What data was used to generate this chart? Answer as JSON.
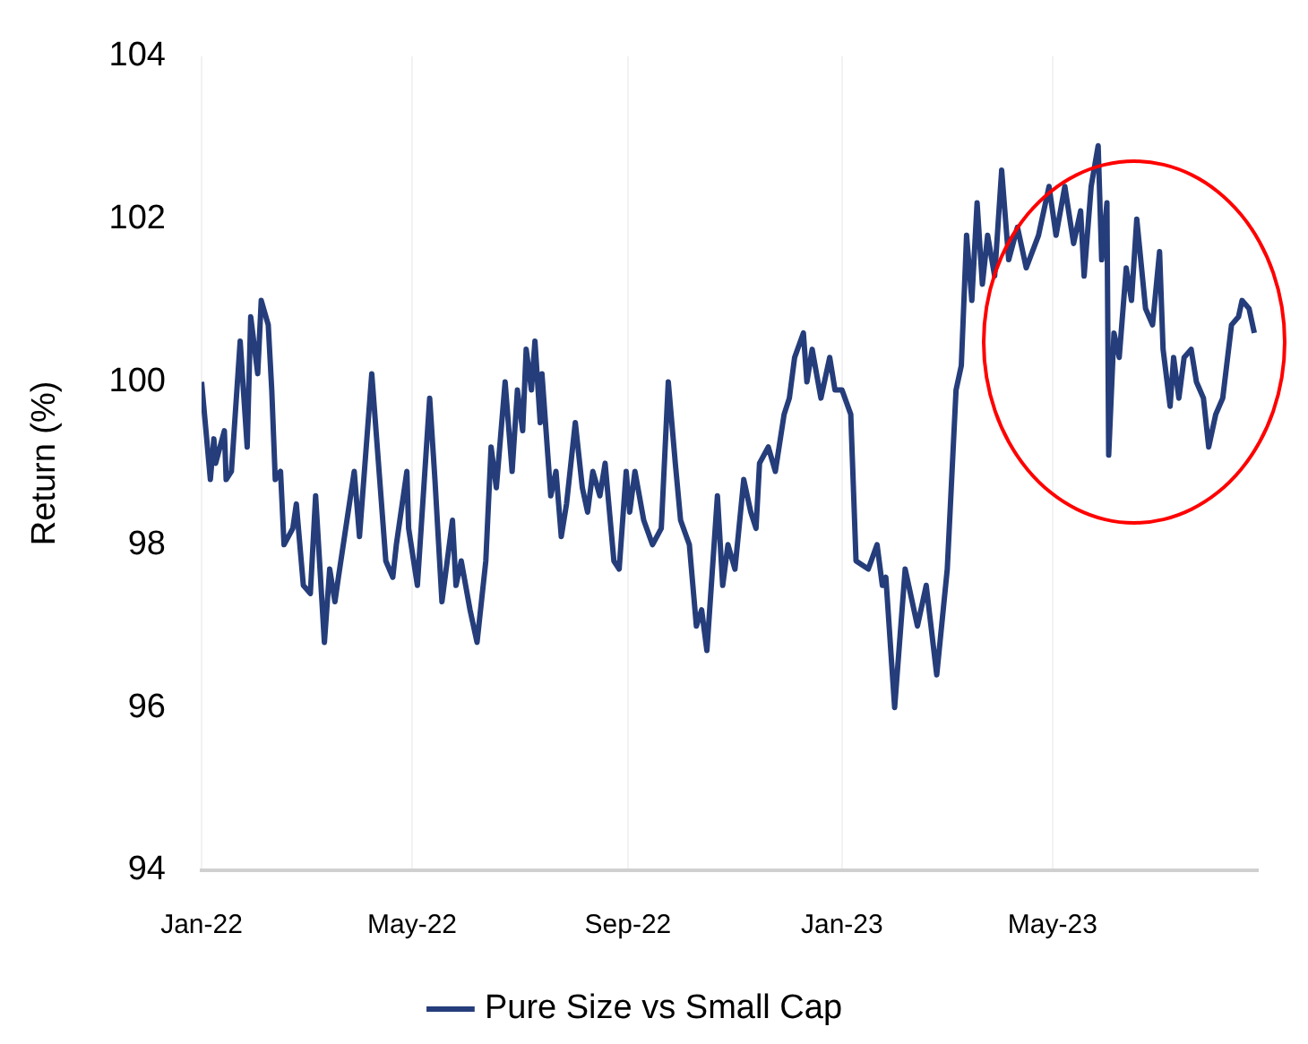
{
  "chart_data": {
    "type": "line",
    "ylabel": "Return (%)",
    "legend": "bottom",
    "grid": "x",
    "marker": "none",
    "line_style": "solid",
    "xlim": [
      "2022-01-01",
      "2023-08-26"
    ],
    "ylim": [
      94,
      104
    ],
    "yticks": [
      94,
      96,
      98,
      100,
      102,
      104
    ],
    "xticks": [
      {
        "value": "2022-01-01",
        "label": "Jan-22"
      },
      {
        "value": "2022-05-01",
        "label": "May-22"
      },
      {
        "value": "2022-09-01",
        "label": "Sep-22"
      },
      {
        "value": "2023-01-01",
        "label": "Jan-23"
      },
      {
        "value": "2023-05-01",
        "label": "May-23"
      }
    ],
    "x": [
      "2022-01-01",
      "2022-01-06",
      "2022-01-08",
      "2022-01-09",
      "2022-01-14",
      "2022-01-15",
      "2022-01-18",
      "2022-01-23",
      "2022-01-27",
      "2022-01-29",
      "2022-02-02",
      "2022-02-04",
      "2022-02-08",
      "2022-02-10",
      "2022-02-12",
      "2022-02-15",
      "2022-02-17",
      "2022-02-22",
      "2022-02-24",
      "2022-02-28",
      "2022-03-04",
      "2022-03-07",
      "2022-03-12",
      "2022-03-15",
      "2022-03-18",
      "2022-03-20",
      "2022-03-29",
      "2022-04-01",
      "2022-04-08",
      "2022-04-16",
      "2022-04-20",
      "2022-04-22",
      "2022-04-28",
      "2022-04-29",
      "2022-05-04",
      "2022-05-11",
      "2022-05-14",
      "2022-05-18",
      "2022-05-24",
      "2022-05-26",
      "2022-05-29",
      "2022-06-03",
      "2022-06-07",
      "2022-06-12",
      "2022-06-15",
      "2022-06-18",
      "2022-06-23",
      "2022-06-27",
      "2022-06-30",
      "2022-07-03",
      "2022-07-05",
      "2022-07-08",
      "2022-07-10",
      "2022-07-13",
      "2022-07-14",
      "2022-07-19",
      "2022-07-22",
      "2022-07-25",
      "2022-07-28",
      "2022-08-02",
      "2022-08-06",
      "2022-08-09",
      "2022-08-12",
      "2022-08-16",
      "2022-08-19",
      "2022-08-24",
      "2022-08-27",
      "2022-08-31",
      "2022-09-02",
      "2022-09-05",
      "2022-09-10",
      "2022-09-15",
      "2022-09-20",
      "2022-09-24",
      "2022-09-28",
      "2022-10-01",
      "2022-10-06",
      "2022-10-10",
      "2022-10-13",
      "2022-10-16",
      "2022-10-22",
      "2022-10-25",
      "2022-10-28",
      "2022-11-01",
      "2022-11-06",
      "2022-11-10",
      "2022-11-13",
      "2022-11-15",
      "2022-11-20",
      "2022-11-24",
      "2022-11-29",
      "2022-12-02",
      "2022-12-05",
      "2022-12-10",
      "2022-12-12",
      "2022-12-15",
      "2022-12-20",
      "2022-12-25",
      "2022-12-28",
      "2023-01-01",
      "2023-01-06",
      "2023-01-09",
      "2023-01-16",
      "2023-01-21",
      "2023-01-24",
      "2023-01-26",
      "2023-01-31",
      "2023-02-06",
      "2023-02-13",
      "2023-02-18",
      "2023-02-24",
      "2023-03-02",
      "2023-03-07",
      "2023-03-10",
      "2023-03-13",
      "2023-03-16",
      "2023-03-19",
      "2023-03-22",
      "2023-03-25",
      "2023-03-29",
      "2023-04-02",
      "2023-04-06",
      "2023-04-11",
      "2023-04-16",
      "2023-04-23",
      "2023-04-29",
      "2023-05-03",
      "2023-05-08",
      "2023-05-13",
      "2023-05-17",
      "2023-05-19",
      "2023-05-23",
      "2023-05-27",
      "2023-05-29",
      "2023-06-01",
      "2023-06-02",
      "2023-06-05",
      "2023-06-08",
      "2023-06-12",
      "2023-06-15",
      "2023-06-18",
      "2023-06-23",
      "2023-06-27",
      "2023-07-01",
      "2023-07-03",
      "2023-07-07",
      "2023-07-09",
      "2023-07-12",
      "2023-07-15",
      "2023-07-19",
      "2023-07-22",
      "2023-07-26",
      "2023-07-29",
      "2023-08-02",
      "2023-08-06",
      "2023-08-11",
      "2023-08-15",
      "2023-08-17",
      "2023-08-21",
      "2023-08-24"
    ],
    "series": [
      {
        "name": "Pure Size vs Small Cap",
        "color": "#253d7a",
        "values": [
          100.0,
          98.8,
          99.3,
          99.0,
          99.4,
          98.8,
          98.9,
          100.5,
          99.2,
          100.8,
          100.1,
          101.0,
          100.7,
          99.9,
          98.8,
          98.9,
          98.0,
          98.2,
          98.5,
          97.5,
          97.4,
          98.6,
          96.8,
          97.7,
          97.3,
          97.6,
          98.9,
          98.1,
          100.1,
          97.8,
          97.6,
          98.0,
          98.9,
          98.2,
          97.5,
          99.8,
          98.8,
          97.3,
          98.3,
          97.5,
          97.8,
          97.2,
          96.8,
          97.8,
          99.2,
          98.7,
          100.0,
          98.9,
          99.9,
          99.4,
          100.4,
          99.9,
          100.5,
          99.5,
          100.1,
          98.6,
          98.9,
          98.1,
          98.5,
          99.5,
          98.7,
          98.4,
          98.9,
          98.6,
          99.0,
          97.8,
          97.7,
          98.9,
          98.4,
          98.9,
          98.3,
          98.0,
          98.2,
          100.0,
          99.0,
          98.3,
          98.0,
          97.0,
          97.2,
          96.7,
          98.6,
          97.5,
          98.0,
          97.7,
          98.8,
          98.4,
          98.2,
          99.0,
          99.2,
          98.9,
          99.6,
          99.8,
          100.3,
          100.6,
          100.0,
          100.4,
          99.8,
          100.3,
          99.9,
          99.9,
          99.6,
          97.8,
          97.7,
          98.0,
          97.5,
          97.6,
          96.0,
          97.7,
          97.0,
          97.5,
          96.4,
          97.7,
          99.9,
          100.2,
          101.8,
          101.0,
          102.2,
          101.2,
          101.8,
          101.3,
          102.6,
          101.5,
          101.9,
          101.4,
          101.8,
          102.4,
          101.8,
          102.4,
          101.7,
          102.1,
          101.3,
          102.4,
          102.9,
          101.5,
          102.2,
          99.1,
          100.6,
          100.3,
          101.4,
          101.0,
          102.0,
          100.9,
          100.7,
          101.6,
          100.4,
          99.7,
          100.3,
          99.8,
          100.3,
          100.4,
          100.0,
          99.8,
          99.2,
          99.6,
          99.8,
          100.7,
          100.8,
          101.0,
          100.9,
          100.6
        ]
      }
    ]
  }
}
